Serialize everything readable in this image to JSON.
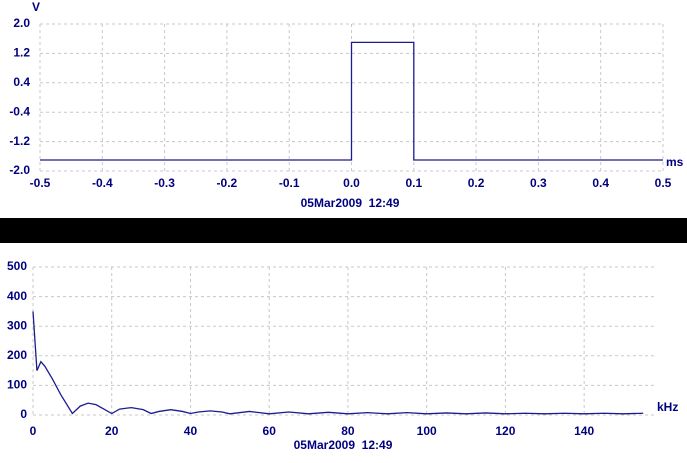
{
  "chart_data": [
    {
      "type": "line",
      "y_label": "V",
      "x_label": "ms",
      "footnote": "05Mar2009  12:49",
      "xlim": [
        -0.5,
        0.5
      ],
      "xticks": [
        -0.5,
        -0.4,
        -0.3,
        -0.2,
        -0.1,
        {
          "value": 0,
          "label": "0.0"
        },
        0.1,
        0.2,
        0.3,
        0.4,
        0.5
      ],
      "ylim": [
        -2,
        2
      ],
      "yticks": [
        {
          "value": 2,
          "label": "2.0"
        },
        1.2,
        0.4,
        -0.4,
        -1.2,
        {
          "value": -2,
          "label": "-2.0"
        }
      ],
      "grid": true,
      "x": [
        -0.5,
        0.0,
        0.0,
        0.1,
        0.1,
        0.5
      ],
      "series": [
        {
          "color": "#1c1c8e",
          "values": [
            -1.7,
            -1.7,
            1.5,
            1.5,
            -1.7,
            -1.7
          ]
        }
      ]
    },
    {
      "type": "line",
      "x_label": "kHz",
      "footnote": "05Mar2009  12:49",
      "xlim": [
        0,
        158
      ],
      "xticks": [
        0,
        20,
        40,
        60,
        80,
        100,
        120,
        140
      ],
      "ylim": [
        0,
        500
      ],
      "yticks": [
        0,
        100,
        200,
        300,
        400,
        500
      ],
      "grid": true,
      "x": [
        0,
        1,
        2,
        3,
        5,
        7,
        10,
        12,
        14,
        16,
        18,
        20,
        22,
        25,
        28,
        30,
        32,
        35,
        38,
        40,
        42,
        45,
        48,
        50,
        55,
        60,
        65,
        70,
        75,
        80,
        85,
        90,
        95,
        100,
        105,
        110,
        115,
        120,
        125,
        130,
        135,
        140,
        145,
        150,
        155
      ],
      "series": [
        {
          "color": "#1c1c8e",
          "values": [
            350,
            150,
            180,
            165,
            120,
            70,
            5,
            30,
            40,
            35,
            20,
            5,
            20,
            25,
            18,
            5,
            12,
            18,
            12,
            5,
            10,
            14,
            10,
            4,
            12,
            4,
            10,
            4,
            9,
            4,
            8,
            4,
            8,
            4,
            7,
            4,
            7,
            4,
            6,
            4,
            6,
            4,
            6,
            4,
            6
          ]
        }
      ]
    }
  ]
}
